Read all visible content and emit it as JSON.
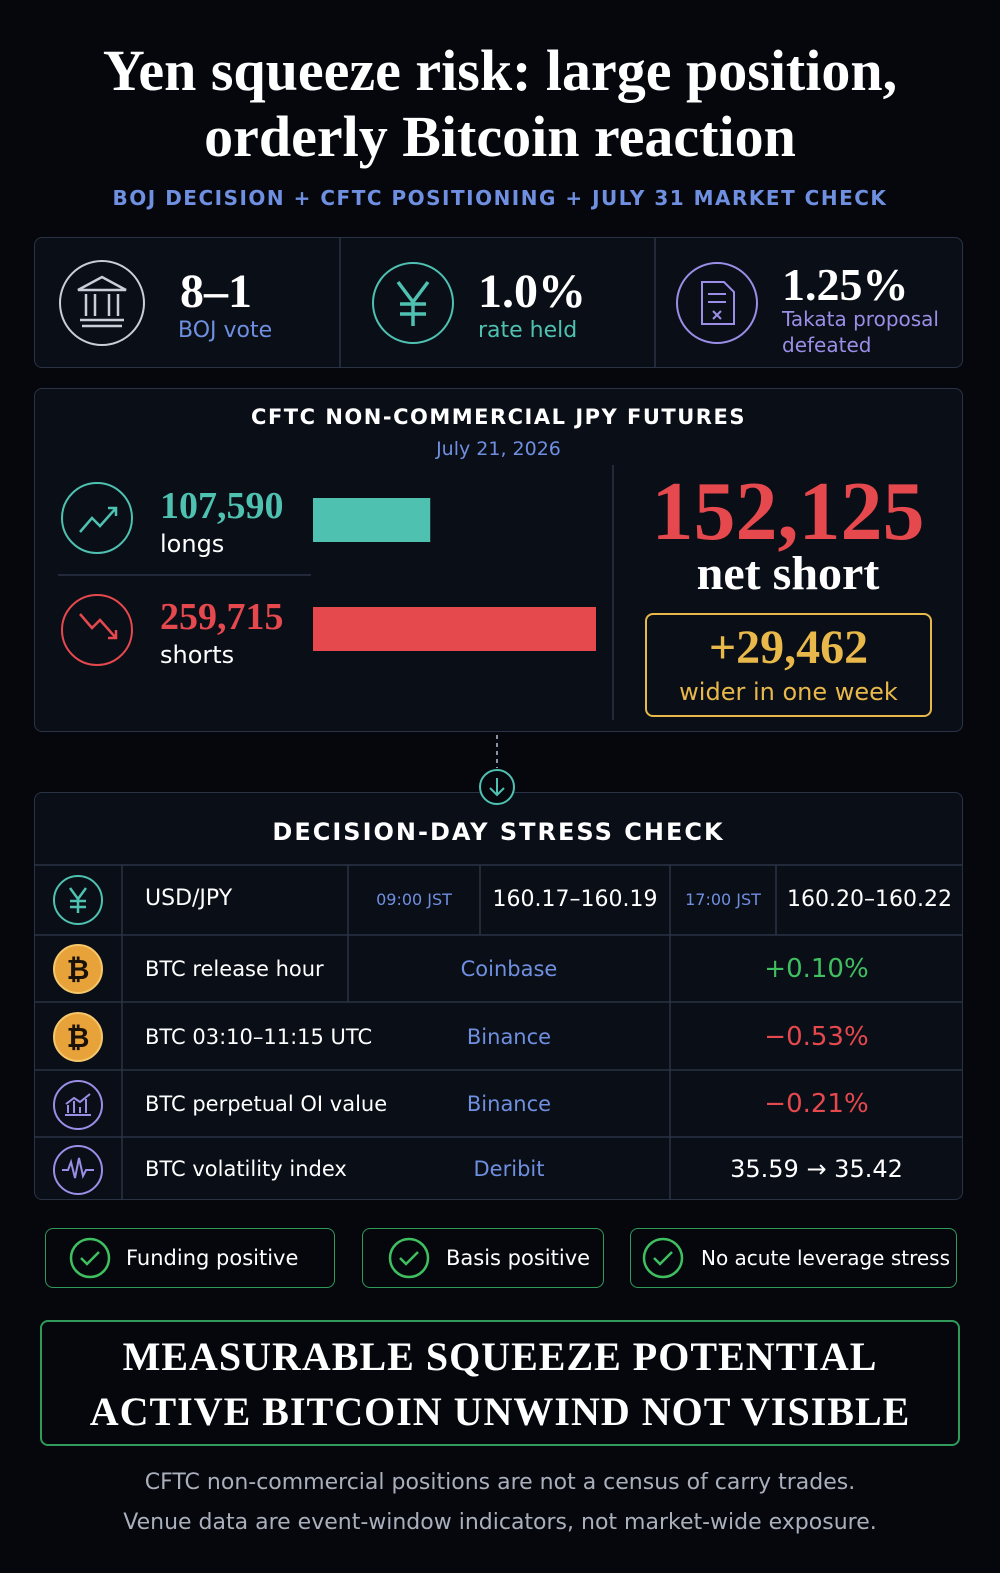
{
  "header": {
    "title": [
      "Yen squeeze risk: large position,",
      "orderly Bitcoin reaction"
    ],
    "subtitle": "BOJ DECISION + CFTC POSITIONING + JULY 31 MARKET CHECK"
  },
  "stats": [
    {
      "value": "8–1",
      "label": "BOJ vote"
    },
    {
      "value": "1.0%",
      "label": "rate held"
    },
    {
      "value": "1.25%",
      "label": "Takata proposal defeated"
    }
  ],
  "cftc": {
    "title": "CFTC NON-COMMERCIAL JPY FUTURES",
    "date": "July 21, 2026",
    "longs": {
      "value": 107590,
      "label": "107,590"
    },
    "longs_label": "longs",
    "shorts": {
      "value": 259715,
      "label": "259,715"
    },
    "shorts_label": "shorts",
    "net": "152,125",
    "net_label": "net short",
    "change": "+29,462",
    "change_label": "wider in one week"
  },
  "stress": {
    "title": "DECISION-DAY STRESS CHECK",
    "fx": {
      "label": "USD/JPY",
      "time1": "09:00 JST",
      "value1": "160.17–160.19",
      "time2": "17:00 JST",
      "value2": "160.20–160.22"
    },
    "rows": [
      {
        "label": "BTC release hour",
        "venue": "Coinbase",
        "value": "+0.10%"
      },
      {
        "label": "BTC 03:10–11:15 UTC",
        "venue": "Binance",
        "value": "−0.53%"
      },
      {
        "label": "BTC perpetual OI value",
        "venue": "Binance",
        "value": "−0.21%"
      },
      {
        "label": "BTC volatility index",
        "venue": "Deribit",
        "value": "35.59 → 35.42"
      }
    ]
  },
  "checks": [
    "Funding positive",
    "Basis positive",
    "No acute leverage stress"
  ],
  "conclusion": [
    "MEASURABLE SQUEEZE POTENTIAL",
    "ACTIVE BITCOIN UNWIND NOT VISIBLE"
  ],
  "footnote": [
    "CFTC non-commercial positions are not a census of carry trades.",
    "Venue data are event-window indicators, not market-wide exposure."
  ]
}
